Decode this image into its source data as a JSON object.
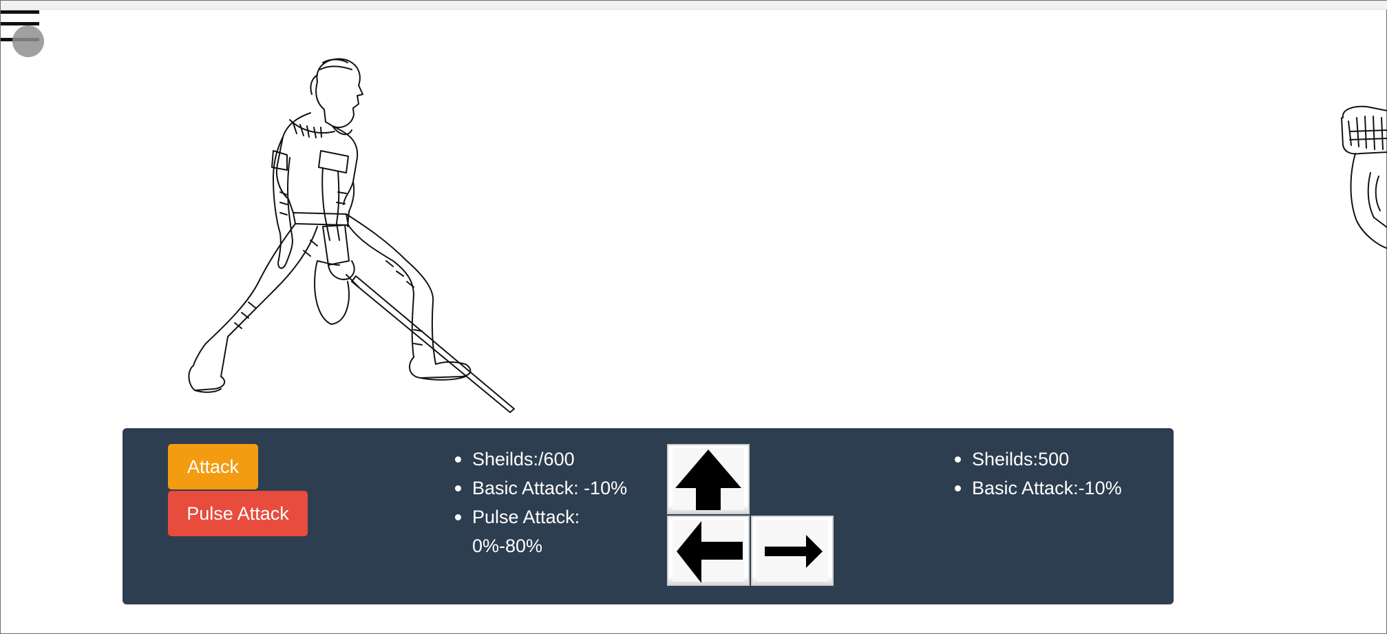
{
  "controls": {
    "attack_label": "Attack",
    "pulse_attack_label": "Pulse Attack"
  },
  "player_stats": {
    "shields": "Sheilds:/600",
    "basic_attack": "Basic Attack: -10%",
    "pulse_attack_line1": "Pulse Attack:",
    "pulse_attack_line2": "0%-80%"
  },
  "enemy_stats": {
    "shields": "Sheilds:500",
    "basic_attack": "Basic Attack:-10%"
  },
  "icons": {
    "menu": "hamburger-menu-icon",
    "up": "arrow-up-icon",
    "left": "arrow-left-icon",
    "right": "arrow-right-icon"
  },
  "colors": {
    "panel": "#2e3e51",
    "attack_button": "#f39c12",
    "pulse_attack_button": "#e74c3c"
  }
}
